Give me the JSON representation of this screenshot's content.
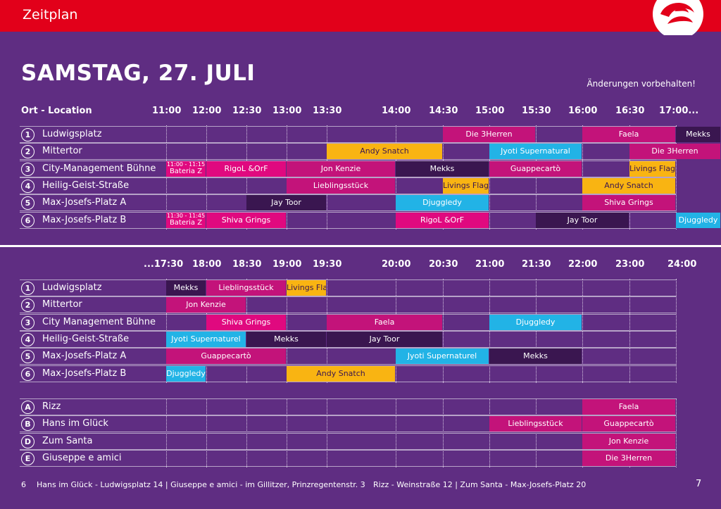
{
  "header": {
    "title": "Zeitplan"
  },
  "headline": "SAMSTAG, 27. JULI",
  "note": "Änderungen vorbehalten!",
  "colors": {
    "pink": "#c3137a",
    "magenta": "#e0097f",
    "dark": "#3a1650",
    "yellow": "#f9b412",
    "cyan": "#22b3e6",
    "purple": "#5f2d82",
    "red": "#e2001a"
  },
  "top": {
    "column_label": "Ort - Location",
    "times": [
      "11:00",
      "12:00",
      "12:30",
      "13:00",
      "13:30",
      "14:00",
      "14:30",
      "15:00",
      "15:30",
      "16:00",
      "16:30",
      "17:00..."
    ],
    "rows": [
      {
        "badge": "1",
        "name": "Ludwigsplatz",
        "events": [
          {
            "label": "Die 3Herren",
            "color": "pink"
          },
          {
            "label": "Faela",
            "color": "pink"
          },
          {
            "label": "Mekks",
            "color": "dark"
          }
        ]
      },
      {
        "badge": "2",
        "name": "Mittertor",
        "events": [
          {
            "label": "Andy Snatch",
            "color": "yellow"
          },
          {
            "label": "Jyoti Supernatural",
            "color": "cyan"
          },
          {
            "label": "Die 3Herren",
            "color": "pink"
          }
        ]
      },
      {
        "badge": "3",
        "name": "City-Management Bühne",
        "events": [
          {
            "label": "Bateria Z",
            "small": "11:00 - 11:15",
            "color": "magenta"
          },
          {
            "label": "RigoL &OrF",
            "color": "magenta"
          },
          {
            "label": "Jon Kenzie",
            "color": "pink"
          },
          {
            "label": "Mekks",
            "color": "dark"
          },
          {
            "label": "Guappecartò",
            "color": "pink"
          },
          {
            "label": "Livings Flags",
            "color": "yellow"
          }
        ]
      },
      {
        "badge": "4",
        "name": "Heilig-Geist-Straße",
        "events": [
          {
            "label": "Lieblingsstück",
            "color": "pink"
          },
          {
            "label": "Livings Flags",
            "color": "yellow"
          },
          {
            "label": "Andy Snatch",
            "color": "yellow"
          }
        ]
      },
      {
        "badge": "5",
        "name": "Max-Josefs-Platz A",
        "events": [
          {
            "label": "Jay Toor",
            "color": "dark"
          },
          {
            "label": "Djuggledy",
            "color": "cyan"
          },
          {
            "label": "Shiva Grings",
            "color": "pink"
          }
        ]
      },
      {
        "badge": "6",
        "name": "Max-Josefs-Platz B",
        "events": [
          {
            "label": "Bateria Z",
            "small": "11:30 - 11:45",
            "color": "magenta"
          },
          {
            "label": "Shiva Grings",
            "color": "magenta"
          },
          {
            "label": "RigoL &OrF",
            "color": "magenta"
          },
          {
            "label": "Jay Toor",
            "color": "dark"
          },
          {
            "label": "Djuggledy",
            "color": "cyan"
          }
        ]
      }
    ]
  },
  "bottom": {
    "times": [
      "...17:30",
      "18:00",
      "18:30",
      "19:00",
      "19:30",
      "20:00",
      "20:30",
      "21:00",
      "21:30",
      "22:00",
      "23:00",
      "24:00"
    ],
    "rows": [
      {
        "badge": "1",
        "name": "Ludwigsplatz",
        "events": [
          {
            "label": "Mekks",
            "color": "dark"
          },
          {
            "label": "Lieblingsstück",
            "color": "pink"
          },
          {
            "label": "Livings Flags",
            "color": "yellow"
          }
        ]
      },
      {
        "badge": "2",
        "name": "Mittertor",
        "events": [
          {
            "label": "Jon Kenzie",
            "color": "pink"
          }
        ]
      },
      {
        "badge": "3",
        "name": "City Management Bühne",
        "events": [
          {
            "label": "Shiva Grings",
            "color": "magenta"
          },
          {
            "label": "Faela",
            "color": "pink"
          },
          {
            "label": "Djuggledy",
            "color": "cyan"
          }
        ]
      },
      {
        "badge": "4",
        "name": "Heilig-Geist-Straße",
        "events": [
          {
            "label": "Jyoti Supernaturel",
            "color": "cyan"
          },
          {
            "label": "Mekks",
            "color": "dark"
          },
          {
            "label": "Jay Toor",
            "color": "dark"
          }
        ]
      },
      {
        "badge": "5",
        "name": "Max-Josefs-Platz A",
        "events": [
          {
            "label": "Guappecartò",
            "color": "pink"
          },
          {
            "label": "Jyoti Supernaturel",
            "color": "cyan"
          },
          {
            "label": "Mekks",
            "color": "dark"
          }
        ]
      },
      {
        "badge": "6",
        "name": "Max-Josefs-Platz B",
        "events": [
          {
            "label": "Djuggledy",
            "color": "cyan"
          },
          {
            "label": "Andy Snatch",
            "color": "yellow"
          }
        ]
      }
    ],
    "venues": [
      {
        "badge": "A",
        "name": "Rizz",
        "events": [
          {
            "label": "Faela",
            "color": "pink"
          }
        ]
      },
      {
        "badge": "B",
        "name": "Hans im Glück",
        "events": [
          {
            "label": "Lieblingsstück",
            "color": "pink"
          },
          {
            "label": "Guappecartò",
            "color": "pink"
          }
        ]
      },
      {
        "badge": "D",
        "name": "Zum Santa",
        "events": [
          {
            "label": "Jon Kenzie",
            "color": "pink"
          }
        ]
      },
      {
        "badge": "E",
        "name": "Giuseppe e amici",
        "events": [
          {
            "label": "Die 3Herren",
            "color": "pink"
          }
        ]
      }
    ]
  },
  "footer": {
    "page_left": "6",
    "left_text": "Hans im Glück - Ludwigsplatz 14  |  Giuseppe e amici - im Gillitzer, Prinzregentenstr. 3",
    "right_text": "Rizz - Weinstraße 12  |  Zum Santa - Max-Josefs-Platz 20",
    "page_right": "7"
  }
}
